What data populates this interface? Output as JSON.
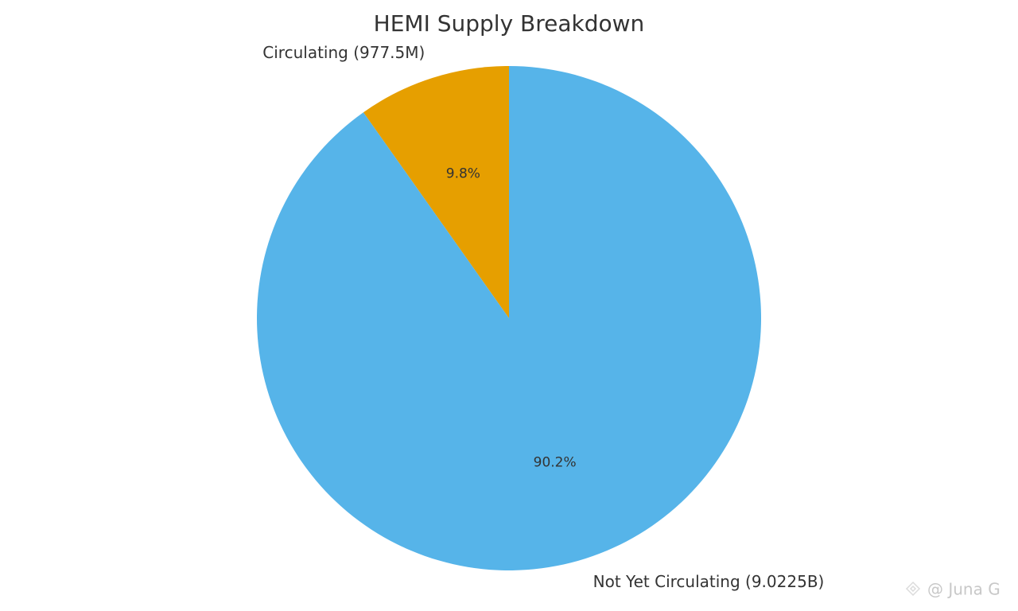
{
  "chart_data": {
    "type": "pie",
    "title": "HEMI Supply Breakdown",
    "categories": [
      "Circulating (977.5M)",
      "Not Yet Circulating (9.0225B)"
    ],
    "values": [
      9.8,
      90.2
    ],
    "value_labels": [
      "9.8%",
      "90.2%"
    ],
    "colors": [
      "#E69F00",
      "#56B4E9"
    ]
  },
  "watermark": "@ Juna G"
}
